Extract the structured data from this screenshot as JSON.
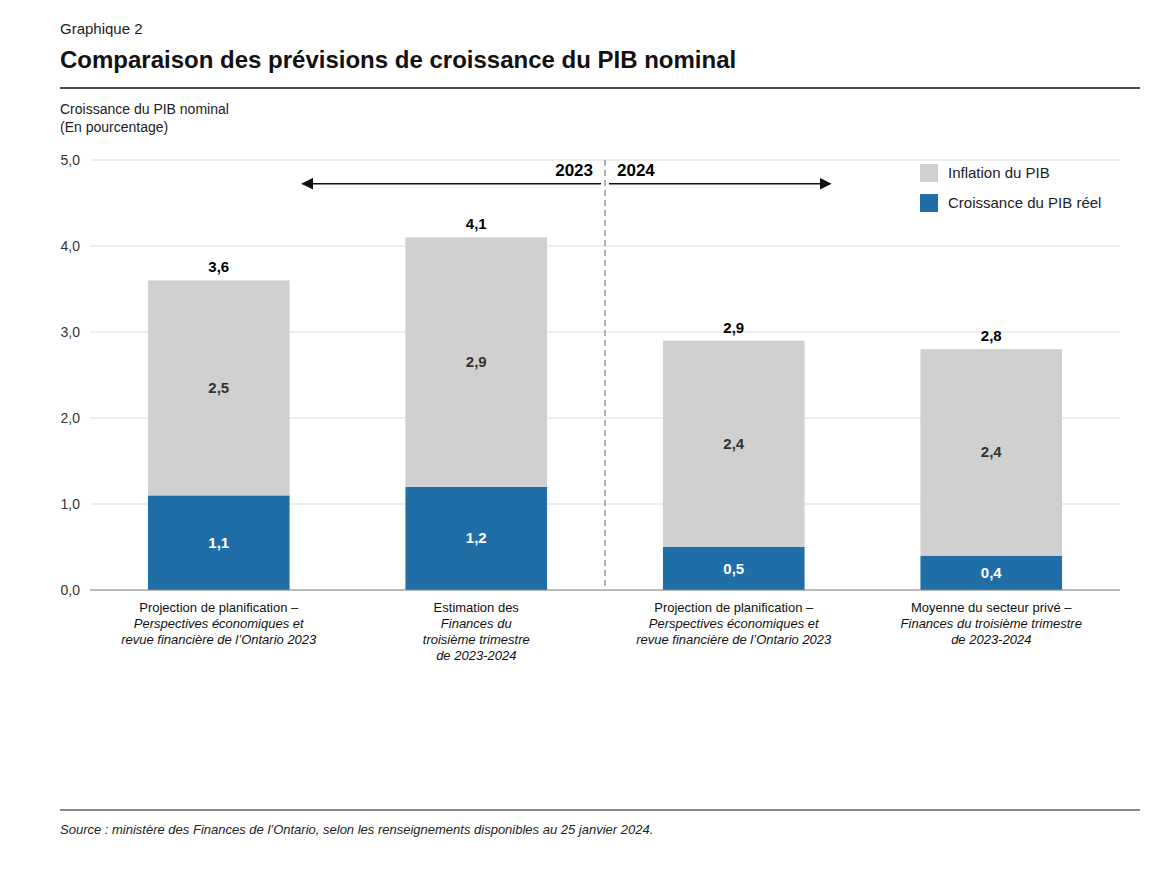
{
  "chart_data": {
    "type": "bar",
    "stacked": true,
    "subtitle": "Graphique 2",
    "title": "Comparaison des prévisions de croissance du PIB nominal",
    "y_label": "Croissance du PIB nominal\n(En pourcentage)",
    "source": "Source : ministère des Finances de l’Ontario, selon les renseignements disponibles au 25 janvier 2024.",
    "categories": [
      "Projection de planification –\nPerspectives économiques et\nrevue financière de l’Ontario 2023",
      "Estimation des\nFinances du\ntroisième trimestre\nde 2023-2024",
      "Projection de planification –\nPerspectives économiques et\nrevue financière de l’Ontario 2023",
      "Moyenne du secteur privé –\nFinances du troisième trimestre\nde 2023-2024"
    ],
    "series": [
      {
        "name": "Croissance du PIB réel",
        "color": "#1F6EA8",
        "values": [
          1.1,
          1.2,
          0.5,
          0.4
        ],
        "value_labels": [
          "1,1",
          "1,2",
          "0,5",
          "0,4"
        ]
      },
      {
        "name": "Inflation du PIB",
        "color": "#D0D0D0",
        "values": [
          2.5,
          2.9,
          2.4,
          2.4
        ],
        "value_labels": [
          "2,5",
          "2,9",
          "2,4",
          "2,4"
        ]
      }
    ],
    "totals": [
      3.6,
      4.1,
      2.9,
      2.8
    ],
    "total_labels": [
      "3,6",
      "4,1",
      "2,9",
      "2,8"
    ],
    "annotations": [
      "2023",
      "2024"
    ],
    "data_labels": true,
    "ylim": [
      0,
      5.0
    ],
    "yticks": [
      {
        "value": 0.0,
        "label": "0,0"
      },
      {
        "value": 1.0,
        "label": "1,0"
      },
      {
        "value": 2.0,
        "label": "2,0"
      },
      {
        "value": 3.0,
        "label": "3,0"
      },
      {
        "value": 4.0,
        "label": "4,0"
      },
      {
        "value": 5.0,
        "label": "5,0"
      }
    ],
    "grid": true,
    "legend": "upper right"
  }
}
